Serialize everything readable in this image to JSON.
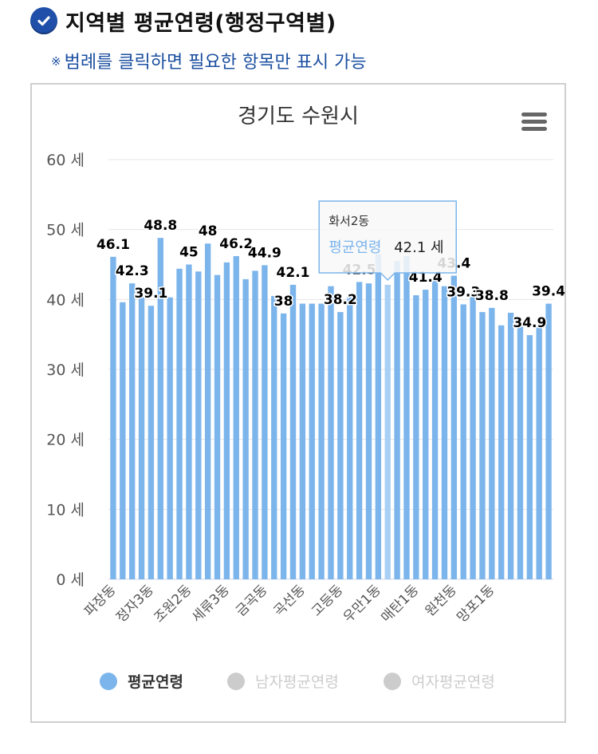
{
  "header": {
    "title": "지역별 평균연령(행정구역별)",
    "notice_mark": "※",
    "notice_text": "범례를 클릭하면 필요한 항목만 표시 가능"
  },
  "colors": {
    "bar": "#7cb5ec",
    "bar_hover": "#a9d0f4",
    "accent": "#1f4fa8",
    "inactive": "#cccccc"
  },
  "icons": {
    "check": "check-circle-icon",
    "menu": "hamburger-menu-icon"
  },
  "chart_data": {
    "type": "bar",
    "title": "경기도 수원시",
    "ylabel": "",
    "y_unit": "세",
    "ylim": [
      0,
      60
    ],
    "yticks": [
      "0 세",
      "10 세",
      "20 세",
      "30 세",
      "40 세",
      "50 세",
      "60 세"
    ],
    "grid": true,
    "legend_position": "bottom",
    "legend": [
      {
        "name": "평균연령",
        "active": true
      },
      {
        "name": "남자평균연령",
        "active": false
      },
      {
        "name": "여자평균연령",
        "active": false
      }
    ],
    "x_tick_labels": [
      "파장동",
      "정자3동",
      "조원2동",
      "세류3동",
      "금곡동",
      "곡선동",
      "고등동",
      "우만1동",
      "매탄1동",
      "원천동",
      "망포1동"
    ],
    "x_tick_every": 4,
    "series": [
      {
        "name": "평균연령",
        "values": [
          46.1,
          39.6,
          42.3,
          40.3,
          39.1,
          48.8,
          40.3,
          44.4,
          45,
          44,
          48,
          43.5,
          45.3,
          46.2,
          42.9,
          44.1,
          44.9,
          40.5,
          38,
          42.1,
          39.4,
          39.4,
          39.4,
          41.9,
          38.2,
          40.3,
          42.5,
          42.3,
          46.5,
          42.1,
          45.5,
          46.2,
          40.6,
          41.4,
          42.7,
          41.9,
          43.4,
          39.3,
          40.4,
          38.2,
          38.8,
          36.3,
          38.1,
          36.4,
          34.9,
          36.2,
          39.4
        ]
      }
    ],
    "data_labels": [
      {
        "index": 0,
        "text": "46.1"
      },
      {
        "index": 2,
        "text": "42.3"
      },
      {
        "index": 4,
        "text": "39.1"
      },
      {
        "index": 5,
        "text": "48.8"
      },
      {
        "index": 8,
        "text": "45"
      },
      {
        "index": 10,
        "text": "48"
      },
      {
        "index": 13,
        "text": "46.2"
      },
      {
        "index": 16,
        "text": "44.9"
      },
      {
        "index": 18,
        "text": "38"
      },
      {
        "index": 19,
        "text": "42.1"
      },
      {
        "index": 24,
        "text": "38.2"
      },
      {
        "index": 26,
        "text": "42.5"
      },
      {
        "index": 33,
        "text": "41.4"
      },
      {
        "index": 36,
        "text": "43.4"
      },
      {
        "index": 37,
        "text": "39.3"
      },
      {
        "index": 40,
        "text": "38.8"
      },
      {
        "index": 44,
        "text": "34.9"
      },
      {
        "index": 46,
        "text": "39.4"
      }
    ],
    "tooltip": {
      "index": 29,
      "category": "화서2동",
      "series_name": "평균연령",
      "value_text": "42.1 세"
    }
  }
}
